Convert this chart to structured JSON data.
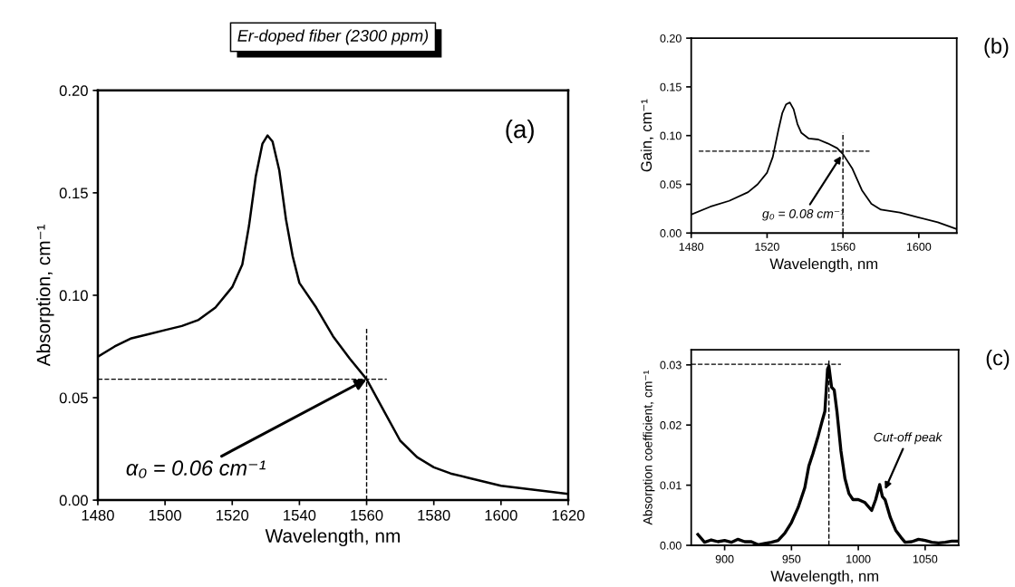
{
  "chart_data": [
    {
      "type": "line",
      "title": "Er-doped fiber (2300 ppm)",
      "xlabel": "Wavelength, nm",
      "ylabel": "Absorption, cm⁻¹",
      "xlim": [
        1480,
        1620
      ],
      "xticks": [
        1480,
        1500,
        1520,
        1540,
        1560,
        1580,
        1600,
        1620
      ],
      "ylim": [
        0,
        0.2
      ],
      "yticks": [
        {
          "value": 0,
          "label": "0.00"
        },
        {
          "value": 0.05,
          "label": "0.05"
        },
        {
          "value": 0.1,
          "label": "0.10"
        },
        {
          "value": 0.15,
          "label": "0.15"
        },
        {
          "value": 0.2,
          "label": "0.20"
        }
      ],
      "line_style": "solid",
      "series": [
        {
          "color": "#000000",
          "x": [
            1480,
            1485,
            1490,
            1495,
            1500,
            1505,
            1510,
            1515,
            1520,
            1523,
            1525,
            1527,
            1529,
            1530.5,
            1532,
            1534,
            1536,
            1538,
            1540,
            1545,
            1550,
            1555,
            1560,
            1565,
            1570,
            1575,
            1580,
            1585,
            1590,
            1595,
            1600,
            1605,
            1610,
            1615,
            1620
          ],
          "values": [
            0.07,
            0.075,
            0.079,
            0.081,
            0.083,
            0.085,
            0.088,
            0.094,
            0.104,
            0.115,
            0.134,
            0.158,
            0.174,
            0.178,
            0.175,
            0.161,
            0.137,
            0.119,
            0.106,
            0.094,
            0.08,
            0.069,
            0.059,
            0.044,
            0.029,
            0.021,
            0.016,
            0.013,
            0.011,
            0.009,
            0.007,
            0.006,
            0.005,
            0.004,
            0.003
          ]
        },
        {
          "color": "#000000",
          "line_style": "dashed",
          "x": [
            1480,
            1566
          ],
          "values": [
            0.059,
            0.059
          ]
        },
        {
          "color": "#000000",
          "line_style": "dashed",
          "x": [
            1560,
            1560
          ],
          "values": [
            0,
            0.084
          ]
        }
      ],
      "annotations": [
        {
          "text": "α₀ = 0.06 cm⁻¹",
          "x": 1560,
          "y": 0.059
        },
        "(a)"
      ]
    },
    {
      "type": "line",
      "xlabel": "Wavelength, nm",
      "ylabel": "Gain, cm⁻¹",
      "xlim": [
        1480,
        1620
      ],
      "xticks": [
        1480,
        1520,
        1560,
        1600
      ],
      "ylim": [
        0,
        0.2
      ],
      "yticks": [
        {
          "value": 0,
          "label": "0.00"
        },
        {
          "value": 0.05,
          "label": "0.05"
        },
        {
          "value": 0.1,
          "label": "0.10"
        },
        {
          "value": 0.15,
          "label": "0.15"
        },
        {
          "value": 0.2,
          "label": "0.20"
        }
      ],
      "line_style": "solid",
      "series": [
        {
          "color": "#000000",
          "x": [
            1480,
            1490,
            1500,
            1510,
            1515,
            1520,
            1523,
            1526,
            1528,
            1530,
            1532,
            1534,
            1536,
            1538,
            1542,
            1547,
            1552,
            1557,
            1560,
            1565,
            1570,
            1575,
            1580,
            1590,
            1600,
            1610,
            1620
          ],
          "values": [
            0.019,
            0.027,
            0.033,
            0.042,
            0.05,
            0.062,
            0.078,
            0.106,
            0.123,
            0.132,
            0.134,
            0.127,
            0.112,
            0.103,
            0.097,
            0.096,
            0.092,
            0.087,
            0.081,
            0.066,
            0.044,
            0.03,
            0.024,
            0.021,
            0.016,
            0.011,
            0.004
          ]
        },
        {
          "color": "#000000",
          "line_style": "dashed",
          "x": [
            1484,
            1574
          ],
          "values": [
            0.084,
            0.084
          ]
        },
        {
          "color": "#000000",
          "line_style": "dashed",
          "x": [
            1560,
            1560
          ],
          "values": [
            0,
            0.103
          ]
        }
      ],
      "annotations": [
        {
          "text": "g₀ = 0.08 cm⁻¹",
          "x": 1559,
          "y": 0.079
        },
        "(b)"
      ]
    },
    {
      "type": "line",
      "xlabel": "Wavelength, nm",
      "ylabel": "Absorption coefficient, cm⁻¹",
      "xlim": [
        875,
        1075
      ],
      "xticks": [
        900,
        950,
        1000,
        1050
      ],
      "ylim": [
        0,
        0.0325
      ],
      "yticks": [
        {
          "value": 0,
          "label": "0.00"
        },
        {
          "value": 0.01,
          "label": "0.01"
        },
        {
          "value": 0.02,
          "label": "0.02"
        },
        {
          "value": 0.03,
          "label": "0.03"
        }
      ],
      "line_style": "solid",
      "series": [
        {
          "color": "#000000",
          "x": [
            880,
            885,
            890,
            895,
            900,
            905,
            910,
            915,
            920,
            925,
            930,
            935,
            940,
            945,
            950,
            955,
            960,
            963,
            966,
            970,
            973,
            975,
            977,
            978,
            980,
            982,
            984,
            987,
            990,
            993,
            996,
            1000,
            1005,
            1010,
            1013,
            1016,
            1018,
            1020,
            1024,
            1028,
            1032,
            1035,
            1040,
            1045,
            1050,
            1055,
            1060,
            1065,
            1070,
            1075
          ],
          "values": [
            0.0018,
            0.0005,
            0.0009,
            0.0006,
            0.0008,
            0.0005,
            0.001,
            0.0006,
            0.0006,
            0.0001,
            0.0003,
            0.0005,
            0.0008,
            0.002,
            0.0038,
            0.0063,
            0.0096,
            0.0132,
            0.0152,
            0.0182,
            0.0207,
            0.0223,
            0.0293,
            0.0298,
            0.0263,
            0.0258,
            0.0223,
            0.0157,
            0.0111,
            0.0086,
            0.0076,
            0.0076,
            0.0071,
            0.0058,
            0.0076,
            0.0101,
            0.0081,
            0.0076,
            0.0046,
            0.0025,
            0.0013,
            0.0005,
            0.0006,
            0.001,
            0.0008,
            0.0005,
            0.0004,
            0.0005,
            0.0007,
            0.0007
          ]
        },
        {
          "color": "#000000",
          "line_style": "dashed",
          "x": [
            875,
            987
          ],
          "values": [
            0.0301,
            0.0301
          ]
        },
        {
          "color": "#000000",
          "line_style": "dashed",
          "x": [
            978,
            978
          ],
          "values": [
            0,
            0.031
          ]
        }
      ],
      "annotations": [
        {
          "text": "Cut-off peak",
          "x": 1020,
          "y": 0.0093
        },
        "(c)"
      ]
    }
  ]
}
